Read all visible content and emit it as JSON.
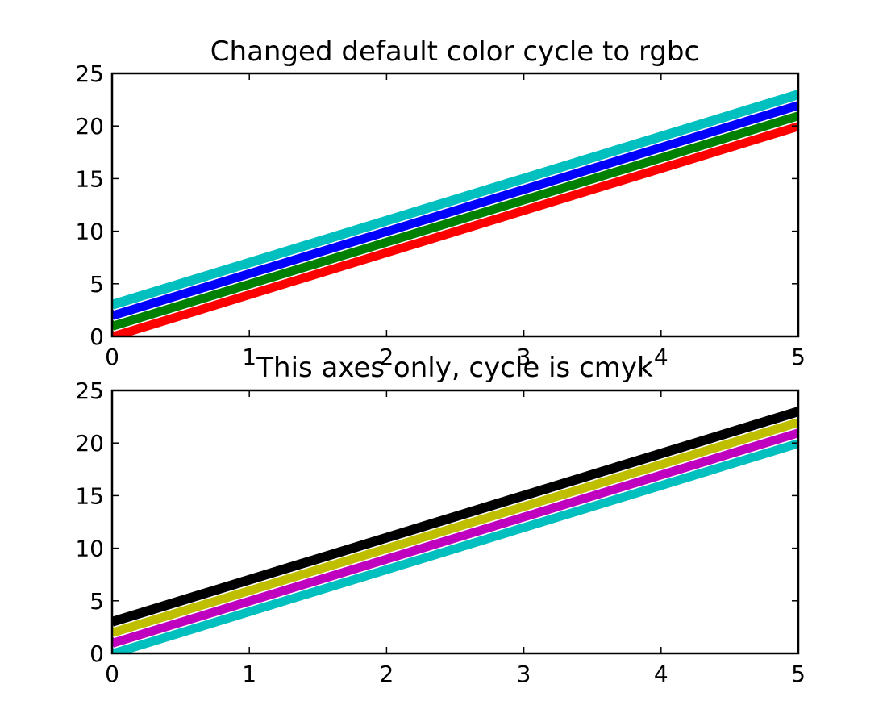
{
  "chart_data": [
    {
      "type": "line",
      "title": "Changed default color cycle to rgbc",
      "xlabel": "",
      "ylabel": "",
      "xlim": [
        0,
        5
      ],
      "ylim": [
        0,
        25
      ],
      "xticks": [
        0,
        1,
        2,
        3,
        4,
        5
      ],
      "yticks": [
        0,
        5,
        10,
        15,
        20,
        25
      ],
      "x": [
        0,
        5
      ],
      "grid": false,
      "series": [
        {
          "color": "#ff0000",
          "values": [
            0,
            20
          ]
        },
        {
          "color": "#008000",
          "values": [
            1,
            21
          ]
        },
        {
          "color": "#0000ff",
          "values": [
            2,
            22
          ]
        },
        {
          "color": "#00bfbf",
          "values": [
            3,
            23
          ]
        }
      ]
    },
    {
      "type": "line",
      "title": "This axes only, cycle is cmyk",
      "xlabel": "",
      "ylabel": "",
      "xlim": [
        0,
        5
      ],
      "ylim": [
        0,
        25
      ],
      "xticks": [
        0,
        1,
        2,
        3,
        4,
        5
      ],
      "yticks": [
        0,
        5,
        10,
        15,
        20,
        25
      ],
      "x": [
        0,
        5
      ],
      "grid": false,
      "series": [
        {
          "color": "#00bfbf",
          "values": [
            0,
            20
          ]
        },
        {
          "color": "#bf00bf",
          "values": [
            1,
            21
          ]
        },
        {
          "color": "#bfbf00",
          "values": [
            2,
            22
          ]
        },
        {
          "color": "#000000",
          "values": [
            3,
            23
          ]
        }
      ]
    }
  ]
}
